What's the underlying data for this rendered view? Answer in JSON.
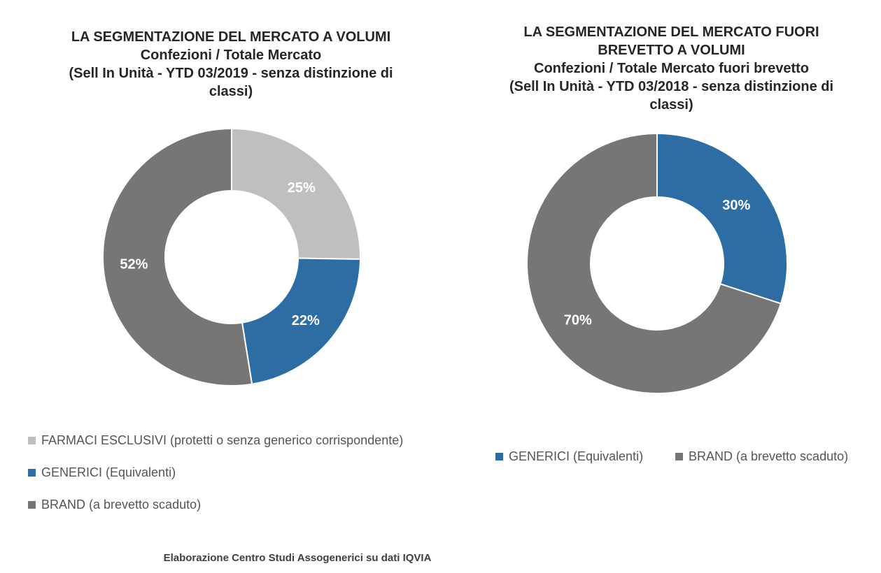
{
  "colors": {
    "exclusive": "#bfbfbf",
    "generic": "#2e6da4",
    "brand": "#767676"
  },
  "chart_data": [
    {
      "type": "pie",
      "variant": "donut",
      "title_lines": [
        "LA SEGMENTAZIONE DEL MERCATO A VOLUMI",
        "Confezioni / Totale Mercato",
        "(Sell In Unità - YTD 03/2019 - senza distinzione di",
        "classi)"
      ],
      "slices": [
        {
          "name": "FARMACI ESCLUSIVI (protetti o senza generico corrispondente)",
          "value": 25,
          "label": "25%",
          "color": "#bfbfbf"
        },
        {
          "name": "GENERICI (Equivalenti)",
          "value": 22,
          "label": "22%",
          "color": "#2e6da4"
        },
        {
          "name": "BRAND (a brevetto scaduto)",
          "value": 52,
          "label": "52%",
          "color": "#767676"
        }
      ],
      "legend_position": "bottom"
    },
    {
      "type": "pie",
      "variant": "donut",
      "title_lines": [
        "LA SEGMENTAZIONE DEL MERCATO FUORI",
        "BREVETTO A VOLUMI",
        "Confezioni / Totale Mercato fuori brevetto",
        "(Sell In Unità - YTD 03/2018 - senza distinzione di",
        "classi)"
      ],
      "slices": [
        {
          "name": "GENERICI (Equivalenti)",
          "value": 30,
          "label": "30%",
          "color": "#2e6da4"
        },
        {
          "name": "BRAND (a brevetto scaduto)",
          "value": 70,
          "label": "70%",
          "color": "#767676"
        }
      ],
      "legend_position": "bottom"
    }
  ],
  "footer": {
    "source": "Elaborazione Centro Studi Assogenerici su dati IQVIA"
  }
}
